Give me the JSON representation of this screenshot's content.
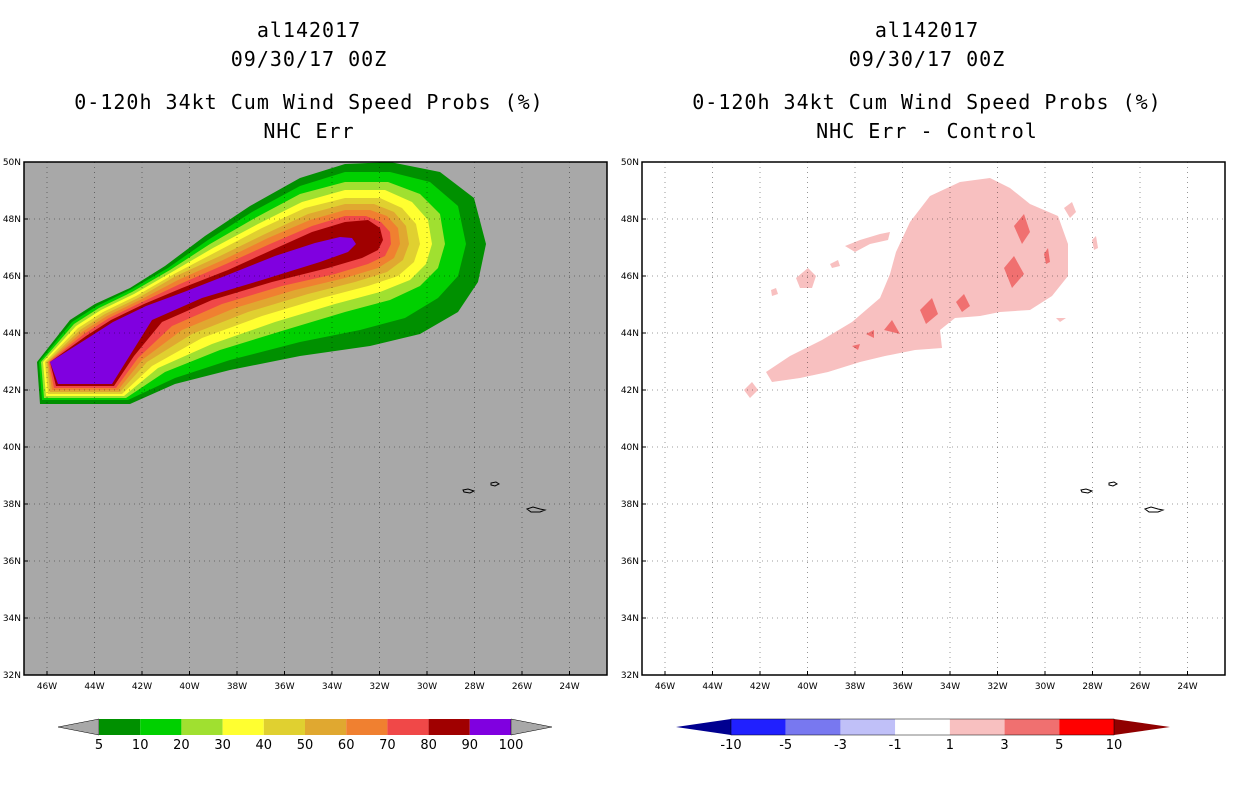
{
  "panels": [
    {
      "title_lines": [
        "al142017",
        "09/30/17 00Z",
        "0-120h 34kt Cum Wind Speed Probs (%)",
        "NHC Err"
      ],
      "colorbar": {
        "labels": [
          "5",
          "10",
          "20",
          "30",
          "40",
          "50",
          "60",
          "70",
          "80",
          "90",
          "100"
        ],
        "colors": [
          "#009000",
          "#00d000",
          "#a0e030",
          "#ffff30",
          "#e0d030",
          "#e0a830",
          "#f08030",
          "#f04848",
          "#a00000",
          "#8000e0"
        ],
        "end_color": "#a8a8a8"
      }
    },
    {
      "title_lines": [
        "al142017",
        "09/30/17 00Z",
        "0-120h 34kt Cum Wind Speed Probs (%)",
        "NHC Err - Control"
      ],
      "colorbar": {
        "labels": [
          "-10",
          "-5",
          "-3",
          "-1",
          "1",
          "3",
          "5",
          "10"
        ],
        "colors": [
          "#0000c0",
          "#2020ff",
          "#7878f0",
          "#c0c0f8",
          "#ffffff",
          "#f8c0c0",
          "#f07070",
          "#ff0000"
        ],
        "left_end_color": "#000090",
        "right_end_color": "#900000"
      }
    }
  ],
  "map": {
    "lat_labels": [
      "50N",
      "48N",
      "46N",
      "44N",
      "42N",
      "40N",
      "38N",
      "36N",
      "34N",
      "32N"
    ],
    "lon_labels": [
      "46W",
      "44W",
      "42W",
      "40W",
      "38W",
      "36W",
      "34W",
      "32W",
      "30W",
      "28W",
      "26W",
      "24W"
    ],
    "land_color": "#a8a8a8"
  }
}
